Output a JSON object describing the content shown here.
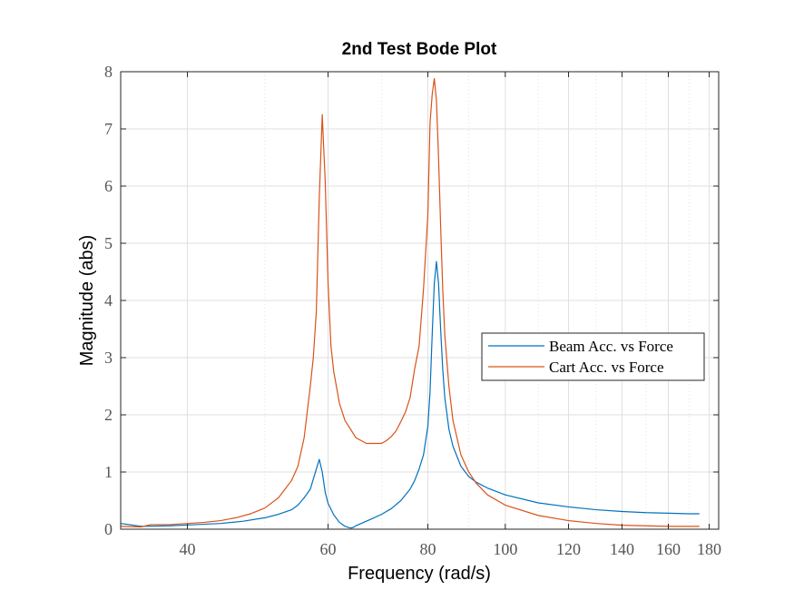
{
  "chart_data": {
    "type": "line",
    "title": "2nd Test Bode Plot",
    "xlabel": "Frequency  (rad/s)",
    "ylabel": "Magnitude (abs)",
    "xscale": "log",
    "xlim": [
      33,
      185
    ],
    "ylim": [
      0,
      8
    ],
    "x_ticks": [
      40,
      60,
      80,
      100,
      120,
      140,
      160,
      180
    ],
    "y_ticks": [
      0,
      1,
      2,
      3,
      4,
      5,
      6,
      7,
      8
    ],
    "grid": true,
    "legend_position": "right",
    "series": [
      {
        "name": "Beam Acc. vs Force",
        "color": "#0072BD",
        "x": [
          33,
          35,
          38,
          41,
          44,
          47,
          50,
          52,
          54,
          55,
          56,
          57,
          58,
          58.5,
          59,
          59.5,
          60,
          61,
          62,
          63,
          64,
          64.5,
          65,
          66,
          67,
          68,
          70,
          72,
          74,
          76,
          77,
          78,
          79,
          80,
          80.5,
          81,
          81.5,
          82,
          82.5,
          83,
          83.5,
          84,
          85,
          86,
          88,
          90,
          92,
          95,
          100,
          110,
          120,
          130,
          140,
          150,
          160,
          170,
          175
        ],
        "values": [
          0.1,
          0.05,
          0.06,
          0.08,
          0.1,
          0.14,
          0.2,
          0.26,
          0.34,
          0.42,
          0.55,
          0.7,
          1.05,
          1.22,
          1.0,
          0.65,
          0.45,
          0.25,
          0.12,
          0.05,
          0.02,
          0.03,
          0.06,
          0.1,
          0.14,
          0.18,
          0.26,
          0.36,
          0.5,
          0.7,
          0.85,
          1.05,
          1.3,
          1.8,
          2.4,
          3.4,
          4.3,
          4.68,
          4.3,
          3.5,
          2.8,
          2.3,
          1.75,
          1.45,
          1.1,
          0.92,
          0.82,
          0.72,
          0.6,
          0.46,
          0.39,
          0.34,
          0.31,
          0.29,
          0.28,
          0.27,
          0.27
        ]
      },
      {
        "name": "Cart Acc. vs Force",
        "color": "#D95319",
        "x": [
          33,
          35,
          36,
          38,
          40,
          42,
          44,
          46,
          48,
          50,
          52,
          53,
          54,
          55,
          56,
          57,
          57.5,
          58,
          58.5,
          59,
          59.5,
          60,
          60.5,
          61,
          62,
          63,
          64,
          65,
          66,
          67,
          68,
          70,
          71,
          72,
          73,
          74,
          75,
          76,
          77,
          78,
          79,
          80,
          80.5,
          81,
          81.5,
          82,
          82.5,
          83,
          83.5,
          84,
          85,
          86,
          88,
          90,
          92,
          95,
          100,
          110,
          120,
          130,
          140,
          150,
          160,
          170,
          175
        ],
        "values": [
          0.05,
          0.04,
          0.08,
          0.08,
          0.1,
          0.12,
          0.15,
          0.2,
          0.27,
          0.37,
          0.55,
          0.7,
          0.85,
          1.1,
          1.6,
          2.5,
          3.0,
          3.8,
          5.8,
          7.25,
          6.1,
          4.3,
          3.2,
          2.75,
          2.2,
          1.9,
          1.75,
          1.6,
          1.55,
          1.5,
          1.5,
          1.5,
          1.55,
          1.62,
          1.72,
          1.88,
          2.05,
          2.3,
          2.8,
          3.2,
          4.2,
          5.5,
          7.1,
          7.6,
          7.88,
          7.5,
          6.5,
          5.3,
          4.2,
          3.4,
          2.5,
          1.9,
          1.3,
          1.0,
          0.8,
          0.6,
          0.42,
          0.24,
          0.15,
          0.1,
          0.07,
          0.06,
          0.05,
          0.05,
          0.05
        ]
      }
    ]
  }
}
